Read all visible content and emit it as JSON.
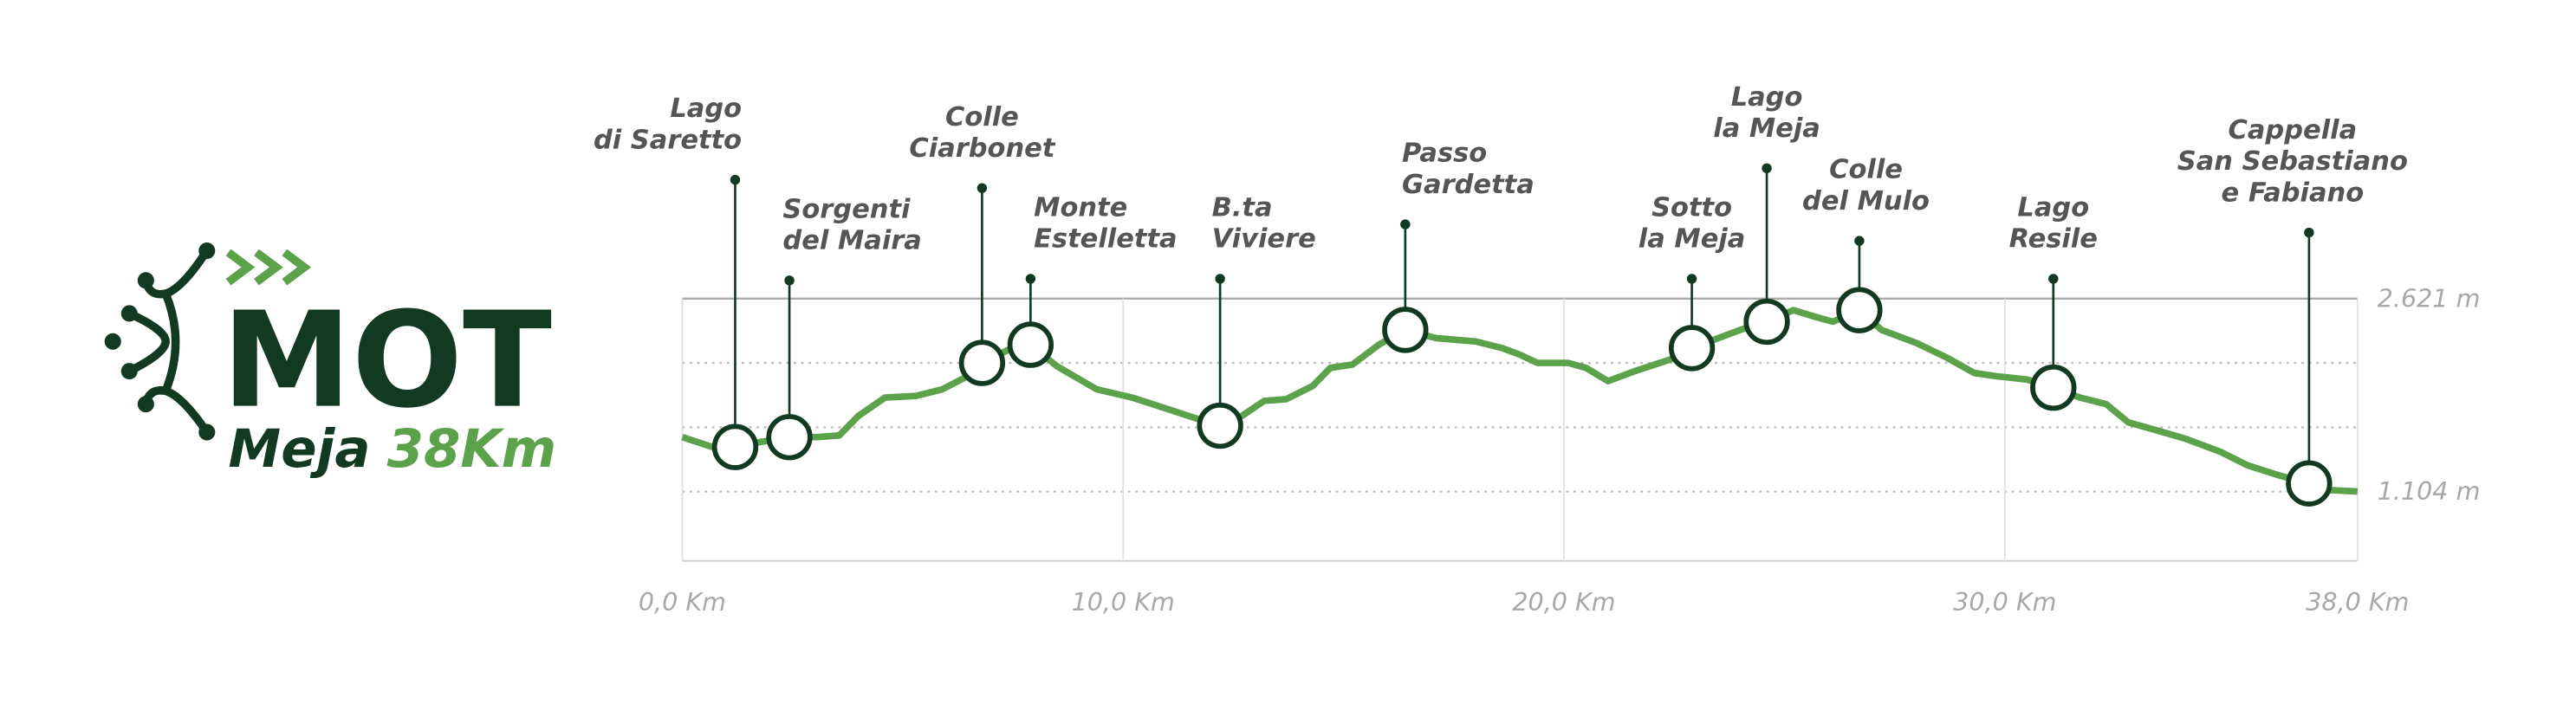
{
  "logo": {
    "title": "MOT",
    "subtitle": "Meja",
    "distance": "38Km"
  },
  "chart_data": {
    "type": "line",
    "x": [
      0,
      0.8,
      1.2,
      1.76,
      2.43,
      3.07,
      3.56,
      4.0,
      4.6,
      5.3,
      5.9,
      6.4,
      6.8,
      7.4,
      7.9,
      8.5,
      9.4,
      10.2,
      10.9,
      11.7,
      12.2,
      12.7,
      13.2,
      13.7,
      14.3,
      14.7,
      15.2,
      15.8,
      16.4,
      17.1,
      18.0,
      18.6,
      19.0,
      19.4,
      20.1,
      20.5,
      21.0,
      21.6,
      22.4,
      22.9,
      23.5,
      24.0,
      24.6,
      25.2,
      25.7,
      26.1,
      26.7,
      27.2,
      28.0,
      28.7,
      29.3,
      29.8,
      30.5,
      31.1,
      31.7,
      32.3,
      32.8,
      33.6,
      34.1,
      34.9,
      35.5,
      36.2,
      36.9,
      37.3,
      38.0
    ],
    "series": [
      {
        "color": "#5ba24a",
        "values": [
          1532,
          1441,
          1454,
          1493,
          1532,
          1532,
          1545,
          1700,
          1843,
          1856,
          1908,
          1998,
          2115,
          2219,
          2258,
          2089,
          1908,
          1843,
          1765,
          1674,
          1622,
          1700,
          1817,
          1830,
          1934,
          2076,
          2102,
          2258,
          2375,
          2310,
          2284,
          2232,
          2180,
          2115,
          2115,
          2076,
          1972,
          2050,
          2141,
          2232,
          2310,
          2375,
          2439,
          2530,
          2478,
          2439,
          2530,
          2375,
          2271,
          2154,
          2037,
          2011,
          1985,
          1921,
          1843,
          1791,
          1648,
          1570,
          1519,
          1415,
          1311,
          1233,
          1168,
          1117,
          1104
        ]
      }
    ],
    "xlim": [
      0,
      38
    ],
    "xticks": [
      {
        "value": 0,
        "label": "0,0 Km"
      },
      {
        "value": 10,
        "label": "10,0 Km"
      },
      {
        "value": 20,
        "label": "20,0 Km"
      },
      {
        "value": 30,
        "label": "30,0 Km"
      },
      {
        "value": 38,
        "label": "38,0 Km"
      }
    ],
    "ylim": [
      559,
      2621
    ],
    "yticks": [
      {
        "value": 2621,
        "label": "2.621 m"
      },
      {
        "value": 1104,
        "label": "1.104 m"
      }
    ],
    "grid": true,
    "annotations": [
      {
        "label": [
          "Lago",
          "di Saretto"
        ],
        "x": 1.2,
        "y": 1454
      },
      {
        "label": [
          "Sorgenti",
          "del Maira"
        ],
        "x": 2.43,
        "y": 1532
      },
      {
        "label": [
          "Colle",
          "Ciarbonet"
        ],
        "x": 6.8,
        "y": 2115
      },
      {
        "label": [
          "Monte",
          "Estelletta"
        ],
        "x": 7.9,
        "y": 2258
      },
      {
        "label": [
          "B.ta",
          "Viviere"
        ],
        "x": 12.2,
        "y": 1622
      },
      {
        "label": [
          "Passo",
          "Gardetta"
        ],
        "x": 16.4,
        "y": 2375
      },
      {
        "label": [
          "Sotto",
          "la Meja"
        ],
        "x": 22.9,
        "y": 2232
      },
      {
        "label": [
          "Lago",
          "la Meja"
        ],
        "x": 24.6,
        "y": 2439
      },
      {
        "label": [
          "Colle",
          "del Mulo"
        ],
        "x": 26.7,
        "y": 2530
      },
      {
        "label": [
          "Lago",
          "Resile"
        ],
        "x": 31.1,
        "y": 1921
      },
      {
        "label": [
          "Cappella",
          "San Sebastiano",
          "e Fabiano"
        ],
        "x": 36.9,
        "y": 1168
      }
    ]
  }
}
